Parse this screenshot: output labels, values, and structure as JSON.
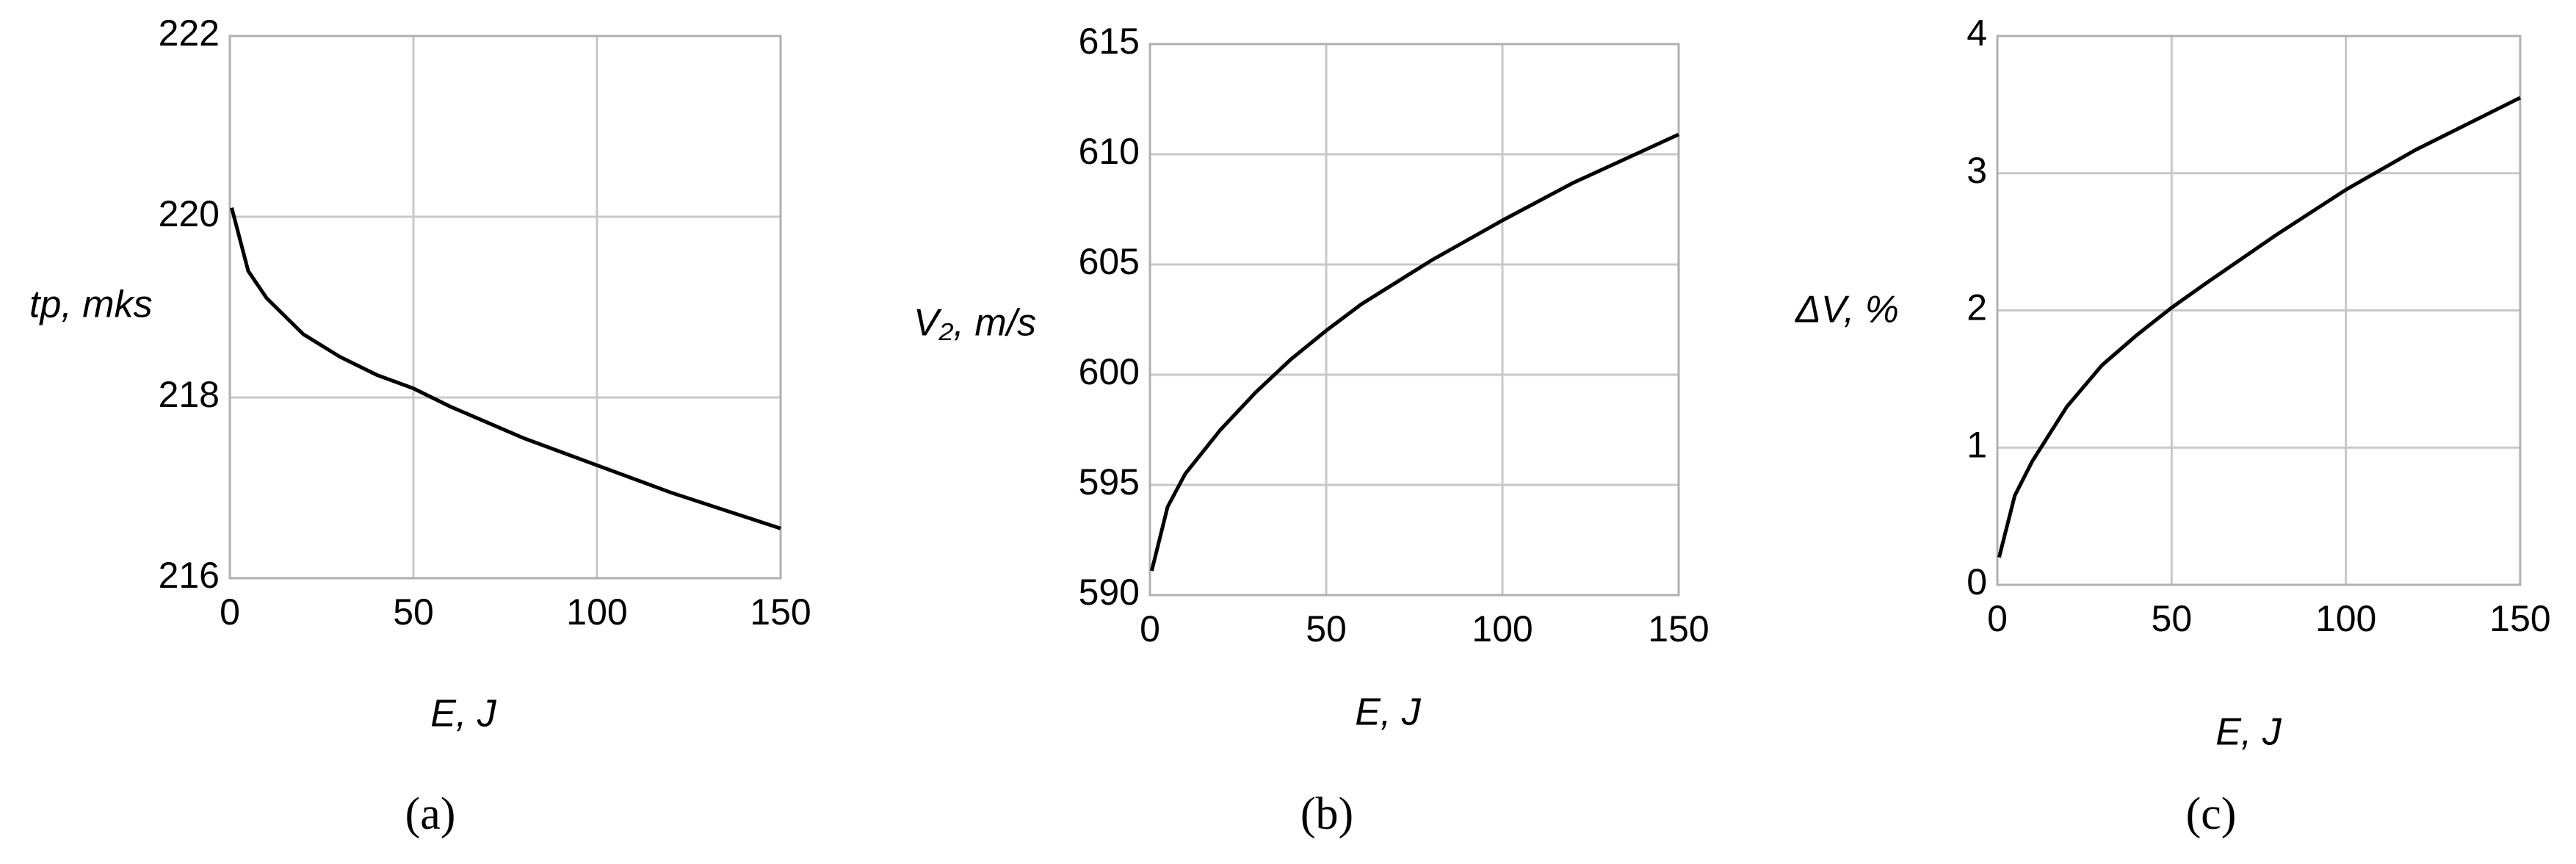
{
  "chart_data": [
    {
      "type": "line",
      "caption": "(a)",
      "x_label": "E, J",
      "y_label": "tp, mks",
      "x": [
        0.5,
        5,
        10,
        20,
        30,
        40,
        50,
        60,
        80,
        100,
        120,
        150
      ],
      "values": [
        220.1,
        219.4,
        219.1,
        218.7,
        218.45,
        218.25,
        218.1,
        217.9,
        217.55,
        217.25,
        216.95,
        216.55
      ],
      "color": "#000000",
      "xlim": [
        0,
        150
      ],
      "xticks": [
        0,
        50,
        100,
        150
      ],
      "ylim": [
        216,
        222
      ],
      "yticks": [
        216,
        218,
        220,
        222
      ],
      "grid": true
    },
    {
      "type": "line",
      "caption": "(b)",
      "x_label": "E, J",
      "y_label": "V₂, m/s",
      "x": [
        0.5,
        5,
        10,
        20,
        30,
        40,
        50,
        60,
        80,
        100,
        120,
        150
      ],
      "values": [
        591.1,
        594,
        595.5,
        597.5,
        599.2,
        600.7,
        602,
        603.2,
        605.2,
        607,
        608.7,
        610.9
      ],
      "color": "#000000",
      "xlim": [
        0,
        150
      ],
      "xticks": [
        0,
        50,
        100,
        150
      ],
      "ylim": [
        590,
        615
      ],
      "yticks": [
        590,
        595,
        600,
        605,
        610,
        615
      ],
      "grid": true
    },
    {
      "type": "line",
      "caption": "(c)",
      "x_label": "E, J",
      "y_label": "ΔV, %",
      "x": [
        0.5,
        5,
        10,
        20,
        30,
        40,
        50,
        60,
        80,
        100,
        120,
        150
      ],
      "values": [
        0.2,
        0.65,
        0.9,
        1.3,
        1.6,
        1.82,
        2.02,
        2.2,
        2.55,
        2.88,
        3.17,
        3.55
      ],
      "color": "#000000",
      "xlim": [
        0,
        150
      ],
      "xticks": [
        0,
        50,
        100,
        150
      ],
      "ylim": [
        0,
        4
      ],
      "yticks": [
        0,
        1,
        2,
        3,
        4
      ],
      "grid": true
    }
  ]
}
